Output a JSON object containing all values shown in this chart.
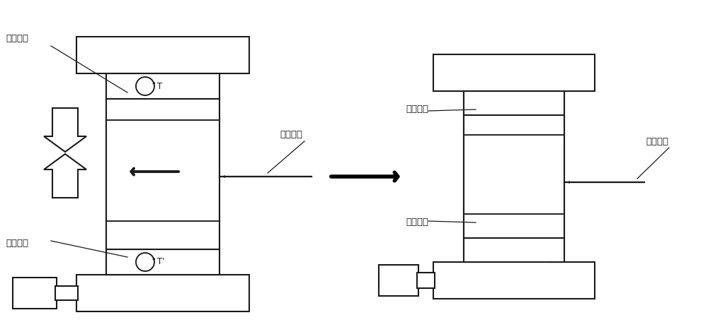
{
  "bg_color": "#ffffff",
  "line_color": "#1a1a1a",
  "line_width": 1.5,
  "fig_width": 10.0,
  "fig_height": 4.63,
  "labels": {
    "left_high_rotor": "高速转子",
    "left_low_rotor": "低速转子",
    "left_hall": "霍尔探头",
    "right_high_rotor": "高速转子",
    "right_low_rotor": "低速转子",
    "right_hall": "霍尔探头"
  }
}
